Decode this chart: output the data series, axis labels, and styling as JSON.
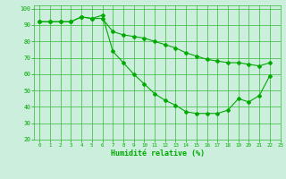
{
  "line1_x": [
    0,
    1,
    2,
    3,
    4,
    5,
    6,
    7,
    8,
    9,
    10,
    11,
    12,
    13,
    14,
    15,
    16,
    17,
    18,
    19,
    20,
    21,
    22
  ],
  "line1_y": [
    92,
    92,
    92,
    92,
    95,
    94,
    94,
    86,
    84,
    83,
    82,
    80,
    78,
    76,
    73,
    71,
    69,
    68,
    67,
    67,
    66,
    65,
    67
  ],
  "line2_x": [
    0,
    1,
    2,
    3,
    4,
    5,
    6,
    7,
    8,
    9,
    10,
    11,
    12,
    13,
    14,
    15,
    16,
    17,
    18,
    19,
    20,
    21,
    22
  ],
  "line2_y": [
    92,
    92,
    92,
    92,
    95,
    94,
    96,
    74,
    67,
    60,
    54,
    48,
    44,
    41,
    37,
    36,
    36,
    36,
    38,
    45,
    43,
    47,
    59
  ],
  "bg_color": "#cceedd",
  "grid_color": "#33bb33",
  "line_color": "#00aa00",
  "xlabel": "Humidité relative (%)",
  "xlim": [
    -0.5,
    23
  ],
  "ylim": [
    20,
    102
  ],
  "yticks": [
    20,
    30,
    40,
    50,
    60,
    70,
    80,
    90,
    100
  ],
  "xticks": [
    0,
    1,
    2,
    3,
    4,
    5,
    6,
    7,
    8,
    9,
    10,
    11,
    12,
    13,
    14,
    15,
    16,
    17,
    18,
    19,
    20,
    21,
    22,
    23
  ]
}
